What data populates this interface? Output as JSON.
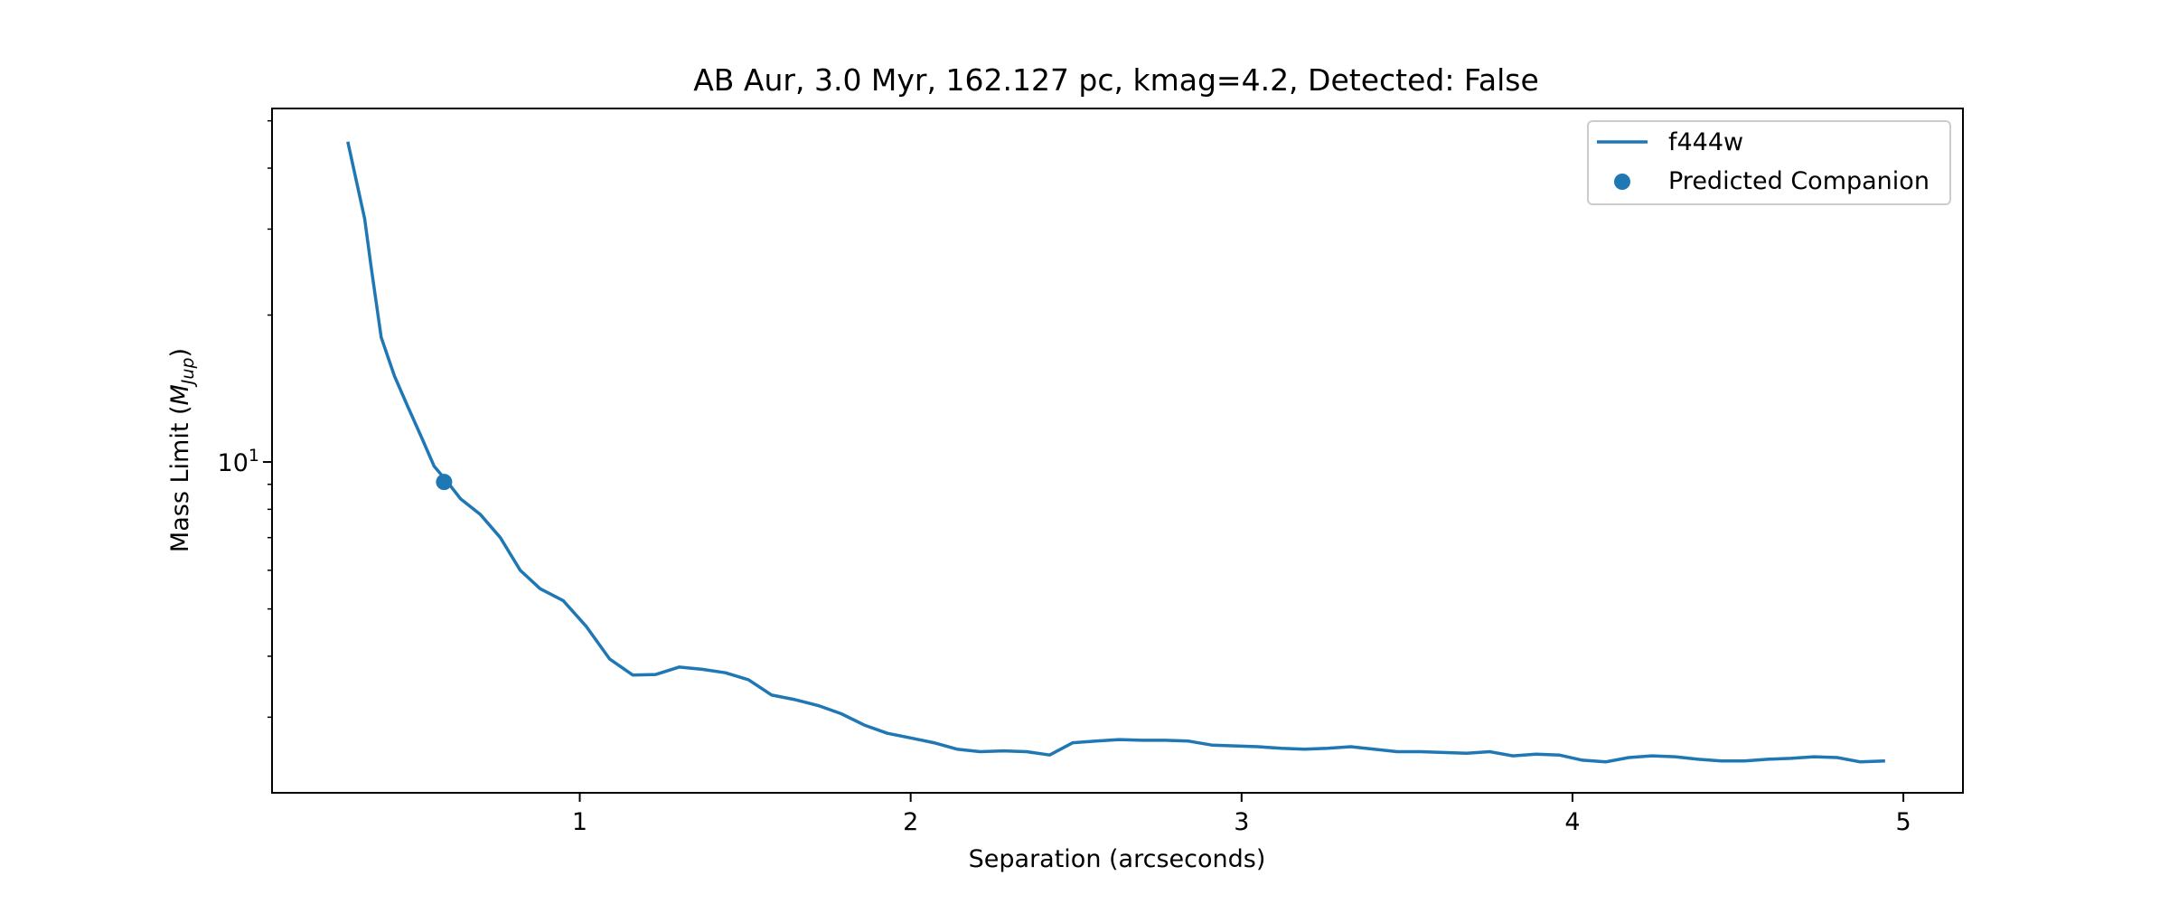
{
  "chart_data": {
    "type": "line",
    "title": "AB Aur, 3.0 Myr, 162.127 pc, kmag=4.2, Detected: False",
    "xlabel": "Separation (arcseconds)",
    "ylabel_prefix": "Mass Limit (",
    "ylabel_math": "M",
    "ylabel_sub": "Jup",
    "ylabel_suffix": ")",
    "xlim": [
      0.07,
      5.18
    ],
    "ylim": [
      2.1,
      53.0
    ],
    "yscale": "log",
    "xticks": [
      1,
      2,
      3,
      4,
      5
    ],
    "yticks_major": [
      {
        "value": 10,
        "base": "10",
        "exp": "1"
      }
    ],
    "yticks_minor": [
      3,
      4,
      5,
      6,
      7,
      8,
      9,
      20,
      30,
      40,
      50
    ],
    "grid": false,
    "legend_position": "top-right",
    "series": [
      {
        "name": "f444w",
        "color": "#1f77b4",
        "x": [
          0.3,
          0.32,
          0.35,
          0.37,
          0.4,
          0.44,
          0.48,
          0.52,
          0.56,
          0.6,
          0.64,
          0.7,
          0.76,
          0.82,
          0.88,
          0.95,
          1.02,
          1.09,
          1.16,
          1.23,
          1.3,
          1.37,
          1.44,
          1.51,
          1.58,
          1.65,
          1.72,
          1.79,
          1.86,
          1.93,
          2.0,
          2.07,
          2.14,
          2.21,
          2.28,
          2.35,
          2.42,
          2.49,
          2.56,
          2.63,
          2.7,
          2.77,
          2.84,
          2.91,
          2.98,
          3.05,
          3.12,
          3.19,
          3.26,
          3.33,
          3.4,
          3.47,
          3.54,
          3.61,
          3.68,
          3.75,
          3.82,
          3.89,
          3.96,
          4.03,
          4.1,
          4.17,
          4.24,
          4.31,
          4.38,
          4.45,
          4.52,
          4.59,
          4.66,
          4.73,
          4.8,
          4.87,
          4.94
        ],
        "y": [
          45.0,
          39.0,
          31.5,
          25.0,
          18.0,
          15.0,
          13.0,
          11.3,
          9.8,
          9.1,
          8.4,
          7.8,
          7.0,
          6.0,
          5.5,
          5.2,
          4.6,
          3.95,
          3.66,
          3.67,
          3.8,
          3.76,
          3.7,
          3.58,
          3.33,
          3.26,
          3.17,
          3.05,
          2.89,
          2.78,
          2.72,
          2.66,
          2.58,
          2.55,
          2.56,
          2.55,
          2.51,
          2.66,
          2.68,
          2.7,
          2.69,
          2.69,
          2.68,
          2.63,
          2.62,
          2.61,
          2.59,
          2.58,
          2.59,
          2.61,
          2.58,
          2.55,
          2.55,
          2.54,
          2.53,
          2.55,
          2.5,
          2.52,
          2.51,
          2.45,
          2.43,
          2.48,
          2.5,
          2.49,
          2.46,
          2.44,
          2.44,
          2.46,
          2.47,
          2.49,
          2.48,
          2.43,
          2.44
        ]
      }
    ],
    "companion": {
      "name": "Predicted Companion",
      "color": "#1f77b4",
      "x": 0.59,
      "y": 9.1
    }
  }
}
